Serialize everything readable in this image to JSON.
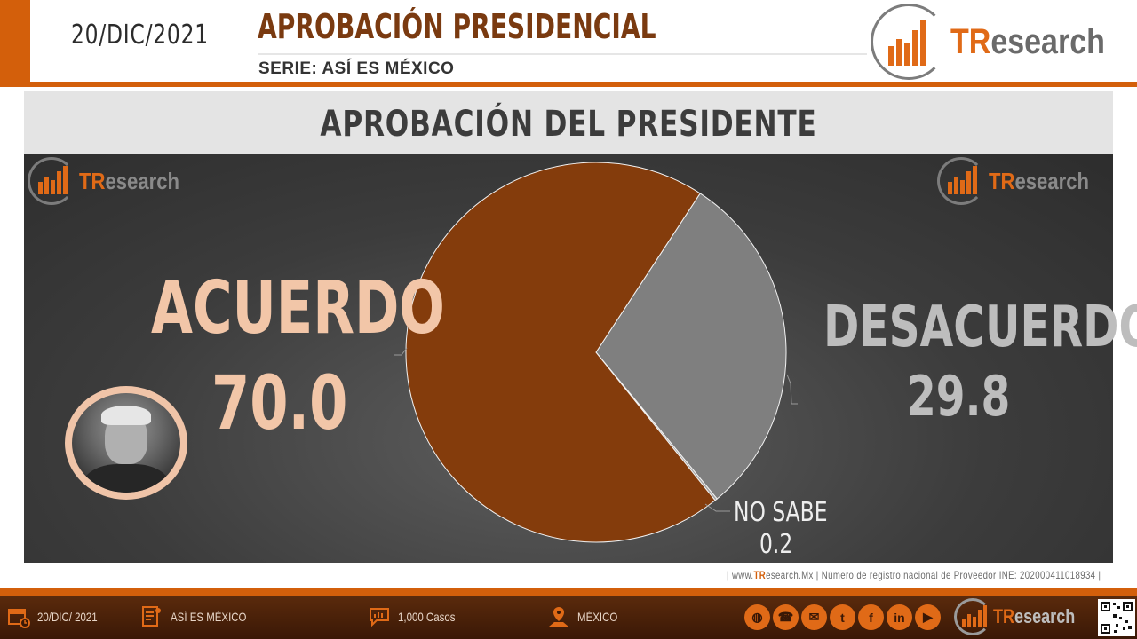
{
  "header": {
    "date": "20/DIC/2021",
    "title": "APROBACIÓN PRESIDENCIAL",
    "series": "SERIE: ASÍ ES MÉXICO",
    "logo_tr": "TR",
    "logo_rest": "esearch"
  },
  "chart_data": {
    "type": "pie",
    "title": "APROBACIÓN DEL PRESIDENTE",
    "slices": [
      {
        "label": "ACUERDO",
        "value": 70.0,
        "display": "70.0",
        "color": "#843c0c"
      },
      {
        "label": "DESACUERDO",
        "value": 29.8,
        "display": "29.8",
        "color": "#7f7f7f"
      },
      {
        "label": "NO SABE",
        "value": 0.2,
        "display": "0.2",
        "color": "#a6a6a6"
      }
    ]
  },
  "footer": {
    "note_prefix": "| www.",
    "note_tr": "TR",
    "note_rest": "esearch.Mx | Número de registro nacional de Proveedor INE: 202000411018934 |",
    "date": "20/DIC/ 2021",
    "series": "ASÍ ES MÉXICO",
    "cases": "1,000 Casos",
    "place": "MÉXICO"
  },
  "icons": {
    "calendar": "calendar-icon",
    "survey": "survey-icon",
    "cases": "chat-icon",
    "place": "map-icon",
    "social": [
      "web-icon",
      "phone-icon",
      "mail-icon",
      "twitter-icon",
      "facebook-icon",
      "linkedin-icon",
      "youtube-icon"
    ]
  },
  "colors": {
    "accent": "#d35f0b",
    "acuerdo": "#843c0c",
    "desacuerdo": "#7f7f7f",
    "no_sabe": "#a6a6a6"
  }
}
